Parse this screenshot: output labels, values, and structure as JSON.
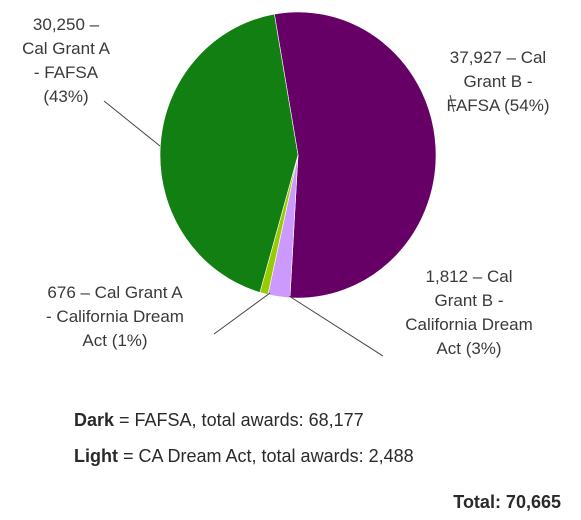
{
  "chart_data": {
    "type": "pie",
    "slices": [
      {
        "name": "Cal Grant B - FAFSA",
        "value": 37927,
        "percent": 54,
        "color": "#660066",
        "label_lines": [
          "37,927 – Cal",
          "Grant B -",
          "FAFSA (54%)"
        ]
      },
      {
        "name": "Cal Grant B - California Dream Act",
        "value": 1812,
        "percent": 3,
        "color": "#cc99ff",
        "label_lines": [
          "1,812 – Cal",
          "Grant B -",
          "California Dream",
          "Act (3%)"
        ]
      },
      {
        "name": "Cal Grant A - California Dream Act",
        "value": 676,
        "percent": 1,
        "color": "#99cc00",
        "label_lines": [
          "676 – Cal Grant A",
          "- California Dream",
          "Act (1%)"
        ]
      },
      {
        "name": "Cal Grant A - FAFSA",
        "value": 30250,
        "percent": 43,
        "color": "#127f12",
        "label_lines": [
          "30,250 –",
          "Cal Grant A",
          "- FAFSA",
          "(43%)"
        ]
      }
    ],
    "legend": {
      "dark_word": "Dark",
      "dark_text": " = FAFSA, total awards: 68,177",
      "light_word": "Light",
      "light_text": " = CA Dream Act, total awards: 2,488"
    },
    "total_text": "Total: 70,665"
  }
}
